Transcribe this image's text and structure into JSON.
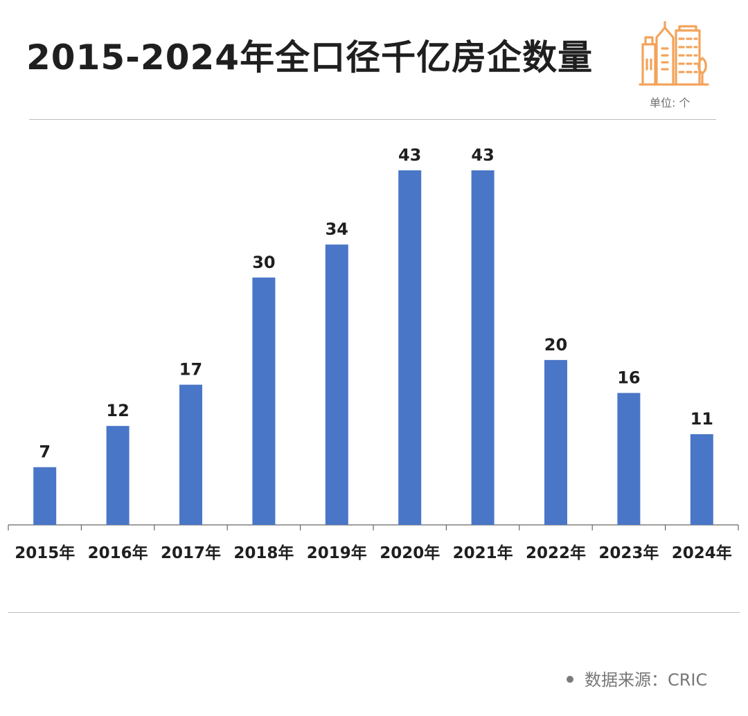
{
  "title": "2015-2024年全口径千亿房企数量",
  "unit_label": "单位: 个",
  "source_label": "数据来源：CRIC",
  "colors": {
    "bar": "#4a76c7",
    "icon": "#f3a35b",
    "axis": "#666666",
    "text": "#1f1f1f"
  },
  "icon": "city-buildings-icon",
  "chart_data": {
    "type": "bar",
    "title": "2015-2024年全口径千亿房企数量",
    "categories": [
      "2015年",
      "2016年",
      "2017年",
      "2018年",
      "2019年",
      "2020年",
      "2021年",
      "2022年",
      "2023年",
      "2024年"
    ],
    "values": [
      7,
      12,
      17,
      30,
      34,
      43,
      43,
      20,
      16,
      11
    ],
    "xlabel": "",
    "ylabel": "",
    "ylim": [
      0,
      43
    ],
    "grid": false,
    "legend": "none",
    "data_labels": true
  }
}
